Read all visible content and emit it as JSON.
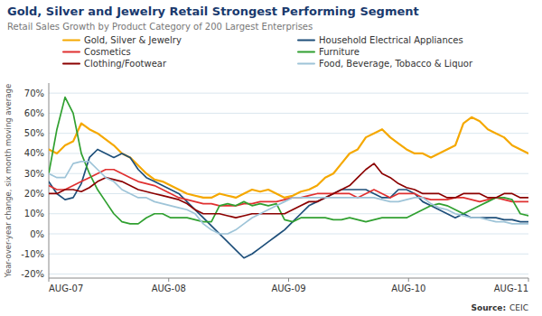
{
  "chart_data": {
    "type": "line",
    "title": "Gold, Silver and Jewelry Retail Strongest Performing Segment",
    "subtitle": "Retail Sales Growth by Product Category of 200 Largest Enterprises",
    "y_label": "Year-over-year change, six month moving average",
    "annotations": [
      "Source:",
      "CEIC"
    ],
    "x": [
      0,
      1,
      2,
      3,
      4,
      5,
      6,
      7,
      8,
      9,
      10,
      11,
      12,
      13,
      14,
      15,
      16,
      17,
      18,
      19,
      20,
      21,
      22,
      23,
      24,
      25,
      26,
      27,
      28,
      29,
      30,
      31,
      32,
      33,
      34,
      35,
      36,
      37,
      38,
      39,
      40,
      41,
      42,
      43,
      44,
      45,
      46,
      47,
      48,
      49,
      50,
      51,
      52,
      53,
      54,
      55,
      56,
      57,
      58,
      59
    ],
    "xlim": [
      0,
      59
    ],
    "xticks": [
      {
        "value": 0,
        "label": "AUG-07"
      },
      {
        "value": 14.75,
        "label": "AUG-08"
      },
      {
        "value": 29.5,
        "label": "AUG-09"
      },
      {
        "value": 44.25,
        "label": "AUG-10"
      },
      {
        "value": 59,
        "label": "AUG-11"
      }
    ],
    "ylim": [
      -22,
      75
    ],
    "yticks": [
      {
        "value": -20,
        "label": "-20%"
      },
      {
        "value": -10,
        "label": "-10%"
      },
      {
        "value": 0,
        "label": "0%"
      },
      {
        "value": 10,
        "label": "10%"
      },
      {
        "value": 20,
        "label": "20%"
      },
      {
        "value": 30,
        "label": "30%"
      },
      {
        "value": 40,
        "label": "40%"
      },
      {
        "value": 50,
        "label": "50%"
      },
      {
        "value": 60,
        "label": "60%"
      },
      {
        "value": 70,
        "label": "70%"
      }
    ],
    "grid": true,
    "legend": "top",
    "series": [
      {
        "name": "Gold, Silver & Jewelry",
        "color": "#f5a800",
        "values": [
          42,
          40,
          44,
          46,
          55,
          52,
          50,
          47,
          44,
          40,
          38,
          34,
          30,
          27,
          26,
          24,
          22,
          20,
          19,
          18,
          18,
          20,
          19,
          18,
          20,
          22,
          21,
          22,
          20,
          18,
          19,
          21,
          22,
          24,
          28,
          30,
          35,
          40,
          42,
          48,
          50,
          52,
          48,
          45,
          42,
          40,
          40,
          38,
          40,
          42,
          44,
          55,
          58,
          56,
          52,
          50,
          48,
          44,
          42,
          40
        ]
      },
      {
        "name": "Household Electrical Appliances",
        "color": "#1e4f7a",
        "values": [
          26,
          20,
          17,
          18,
          25,
          38,
          42,
          40,
          38,
          40,
          38,
          32,
          28,
          26,
          24,
          22,
          20,
          16,
          12,
          8,
          4,
          0,
          -4,
          -8,
          -12,
          -10,
          -7,
          -4,
          -1,
          2,
          6,
          10,
          14,
          16,
          18,
          20,
          22,
          22,
          22,
          22,
          20,
          18,
          18,
          22,
          22,
          20,
          16,
          14,
          12,
          10,
          8,
          10,
          8,
          8,
          8,
          8,
          7,
          7,
          6,
          6
        ]
      },
      {
        "name": "Cosmetics",
        "color": "#e03030",
        "values": [
          24,
          22,
          22,
          24,
          26,
          28,
          30,
          32,
          32,
          30,
          28,
          26,
          25,
          24,
          22,
          20,
          18,
          17,
          16,
          15,
          15,
          14,
          14,
          14,
          15,
          15,
          16,
          16,
          16,
          17,
          18,
          18,
          19,
          20,
          20,
          20,
          20,
          20,
          18,
          20,
          22,
          20,
          18,
          20,
          20,
          20,
          18,
          17,
          17,
          17,
          18,
          18,
          17,
          16,
          17,
          18,
          17,
          16,
          16,
          16
        ]
      },
      {
        "name": "Furniture",
        "color": "#30a030",
        "values": [
          30,
          52,
          68,
          60,
          40,
          30,
          22,
          16,
          10,
          6,
          5,
          5,
          8,
          10,
          10,
          8,
          8,
          8,
          7,
          6,
          6,
          14,
          15,
          14,
          16,
          14,
          15,
          14,
          15,
          7,
          6,
          8,
          8,
          8,
          8,
          7,
          7,
          8,
          7,
          6,
          7,
          8,
          8,
          8,
          8,
          10,
          12,
          14,
          15,
          14,
          12,
          10,
          12,
          14,
          16,
          18,
          18,
          17,
          10,
          9
        ]
      },
      {
        "name": "Clothing/Footwear",
        "color": "#8b0000",
        "values": [
          20,
          20,
          22,
          22,
          21,
          23,
          26,
          28,
          27,
          26,
          24,
          22,
          21,
          20,
          19,
          18,
          17,
          15,
          12,
          10,
          10,
          10,
          9,
          8,
          9,
          10,
          10,
          10,
          10,
          10,
          12,
          14,
          16,
          16,
          18,
          20,
          22,
          24,
          28,
          32,
          35,
          30,
          28,
          25,
          23,
          22,
          20,
          20,
          20,
          18,
          18,
          20,
          20,
          20,
          18,
          18,
          20,
          20,
          18,
          18
        ]
      },
      {
        "name": "Food, Beverage, Tobacco & Liquor",
        "color": "#9ec4d8",
        "values": [
          30,
          28,
          28,
          35,
          36,
          36,
          32,
          28,
          26,
          22,
          20,
          18,
          18,
          16,
          15,
          14,
          13,
          12,
          10,
          5,
          2,
          0,
          0,
          2,
          5,
          8,
          10,
          12,
          14,
          16,
          18,
          18,
          18,
          18,
          18,
          18,
          18,
          18,
          18,
          18,
          18,
          17,
          16,
          16,
          17,
          18,
          18,
          15,
          13,
          12,
          10,
          9,
          8,
          8,
          7,
          6,
          6,
          5,
          5,
          5
        ]
      }
    ]
  }
}
